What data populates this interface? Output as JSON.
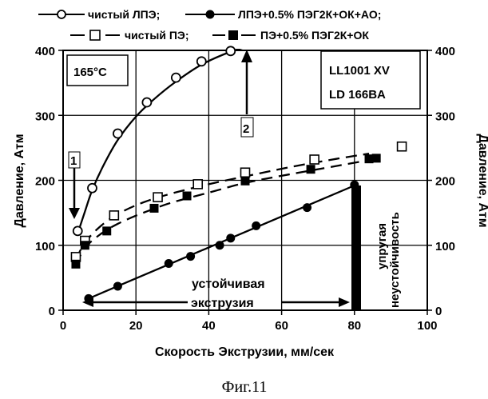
{
  "chart_data": {
    "type": "line",
    "xlabel": "Скорость Экструзии, мм/сек",
    "ylabel_left": "Давление, Атм",
    "ylabel_right": "Давление, Атм",
    "xlim": [
      0,
      100
    ],
    "ylim": [
      0,
      400
    ],
    "x_ticks": [
      "0",
      "20",
      "40",
      "60",
      "80",
      "100"
    ],
    "y_ticks_left": [
      "0",
      "100",
      "200",
      "300",
      "400"
    ],
    "y_ticks_right": [
      "0",
      "100",
      "200",
      "300",
      "400"
    ],
    "grid": true,
    "legend_position": "top",
    "series": [
      {
        "name": "чистый ЛПЭ;",
        "marker": "open-circle",
        "line": "solid",
        "points": [
          [
            4,
            122
          ],
          [
            8,
            188
          ],
          [
            15,
            272
          ],
          [
            23,
            320
          ],
          [
            31,
            358
          ],
          [
            38,
            383
          ],
          [
            46,
            399
          ]
        ],
        "curve": [
          [
            4,
            118
          ],
          [
            6,
            152
          ],
          [
            8,
            185
          ],
          [
            11,
            222
          ],
          [
            15,
            262
          ],
          [
            20,
            298
          ],
          [
            25,
            325
          ],
          [
            31,
            352
          ],
          [
            38,
            378
          ],
          [
            46,
            398
          ],
          [
            52,
            408
          ]
        ]
      },
      {
        "name": "ЛПЭ+0.5% ПЭГ2К+ОК+АО;",
        "marker": "filled-circle",
        "line": "solid",
        "points": [
          [
            7,
            18
          ],
          [
            15,
            37
          ],
          [
            29,
            72
          ],
          [
            35,
            83
          ],
          [
            43,
            100
          ],
          [
            46,
            111
          ],
          [
            53,
            130
          ],
          [
            67,
            158
          ],
          [
            80,
            193
          ]
        ],
        "curve": [
          [
            7,
            18
          ],
          [
            80,
            192
          ]
        ]
      },
      {
        "name": "чистый ПЭ;",
        "marker": "open-square",
        "line": "dashed",
        "points": [
          [
            3.5,
            82
          ],
          [
            6,
            107
          ],
          [
            14,
            146
          ],
          [
            26,
            174
          ],
          [
            37,
            194
          ],
          [
            50,
            212
          ],
          [
            69,
            232
          ],
          [
            93,
            252
          ]
        ],
        "curve": [
          [
            3.5,
            78
          ],
          [
            6,
            104
          ],
          [
            10,
            128
          ],
          [
            15,
            148
          ],
          [
            22,
            166
          ],
          [
            30,
            180
          ],
          [
            40,
            194
          ],
          [
            50,
            206
          ],
          [
            62,
            220
          ],
          [
            75,
            233
          ],
          [
            84,
            241
          ]
        ]
      },
      {
        "name": "ПЭ+0.5% ПЭГ2К+ОК",
        "marker": "filled-square",
        "line": "dashed",
        "points": [
          [
            3.5,
            71
          ],
          [
            6,
            100
          ],
          [
            12,
            122
          ],
          [
            25,
            157
          ],
          [
            34,
            176
          ],
          [
            50,
            199
          ],
          [
            68,
            217
          ],
          [
            84,
            233
          ],
          [
            86,
            234
          ]
        ],
        "curve": [
          [
            3.5,
            70
          ],
          [
            6,
            96
          ],
          [
            10,
            116
          ],
          [
            15,
            133
          ],
          [
            22,
            150
          ],
          [
            30,
            166
          ],
          [
            40,
            181
          ],
          [
            50,
            196
          ],
          [
            62,
            209
          ],
          [
            75,
            222
          ],
          [
            87,
            234
          ]
        ]
      }
    ],
    "annotations": {
      "temperature": "165°C",
      "sample_line1": "LL1001 XV",
      "sample_line2": "LD 166BA",
      "label1": "1",
      "label2": "2",
      "stable_line1": "устойчивая",
      "stable_line2": "экструзия",
      "elastic_line1": "упругая",
      "elastic_line2": "неустойчивость"
    }
  },
  "caption": "Фиг.11"
}
